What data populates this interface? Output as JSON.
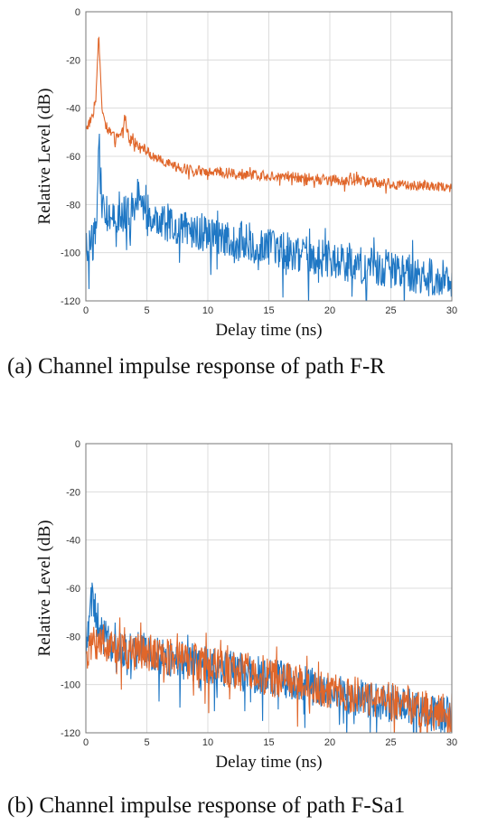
{
  "chart_data": [
    {
      "type": "line",
      "caption": "(a) Channel impulse response of path F-R",
      "xlabel": "Delay time (ns)",
      "ylabel": "Relative Level (dB)",
      "xlim": [
        0,
        30
      ],
      "ylim": [
        -120,
        0
      ],
      "xticks": [
        "0",
        "5",
        "10",
        "15",
        "20",
        "25",
        "30"
      ],
      "yticks": [
        "-120",
        "-100",
        "-80",
        "-60",
        "-40",
        "-20",
        "0"
      ],
      "grid": true,
      "series": [
        {
          "color": "#E0662A",
          "x": [
            0,
            0.3,
            0.6,
            0.8,
            0.95,
            1.05,
            1.15,
            1.3,
            1.6,
            2.0,
            2.5,
            3.0,
            3.2,
            3.4,
            3.6,
            3.8,
            4.2,
            4.6,
            5.0,
            5.5,
            6.0,
            7.0,
            8.0,
            9.0,
            10.0,
            12.0,
            14.0,
            16.0,
            18.0,
            20.0,
            22.0,
            24.0,
            26.0,
            28.0,
            30.0
          ],
          "values": [
            -48,
            -46,
            -42,
            -35,
            -22,
            -9,
            -20,
            -38,
            -47,
            -50,
            -53,
            -50,
            -42,
            -50,
            -54,
            -52,
            -56,
            -55,
            -58,
            -60,
            -61,
            -64,
            -65,
            -66,
            -66,
            -67,
            -68,
            -68,
            -69,
            -70,
            -70,
            -71,
            -72,
            -72,
            -73
          ]
        },
        {
          "color": "#1F77C4",
          "x": [
            0,
            0.3,
            0.6,
            0.9,
            1.0,
            1.1,
            1.2,
            1.4,
            2.0,
            3.0,
            4.0,
            4.5,
            5.0,
            6.0,
            7.0,
            8.0,
            10.0,
            12.0,
            14.0,
            16.0,
            18.0,
            20.0,
            22.0,
            24.0,
            26.0,
            28.0,
            30.0
          ],
          "values": [
            -105,
            -98,
            -95,
            -90,
            -70,
            -53,
            -70,
            -82,
            -86,
            -84,
            -82,
            -72,
            -85,
            -87,
            -88,
            -89,
            -92,
            -95,
            -97,
            -99,
            -101,
            -103,
            -105,
            -106,
            -108,
            -110,
            -112
          ]
        }
      ]
    },
    {
      "type": "line",
      "caption": "(b) Channel impulse response of path F-Sa1",
      "xlabel": "Delay time (ns)",
      "ylabel": "Relative Level (dB)",
      "xlim": [
        0,
        30
      ],
      "ylim": [
        -120,
        0
      ],
      "xticks": [
        "0",
        "5",
        "10",
        "15",
        "20",
        "25",
        "30"
      ],
      "yticks": [
        "-120",
        "-100",
        "-80",
        "-60",
        "-40",
        "-20",
        "0"
      ],
      "grid": true,
      "series": [
        {
          "color": "#1F77C4",
          "x": [
            0,
            0.3,
            0.5,
            0.8,
            1.2,
            2.0,
            3.0,
            4.0,
            5.0,
            6.0,
            8.0,
            10.0,
            12.0,
            14.0,
            16.0,
            18.0,
            20.0,
            22.0,
            24.0,
            26.0,
            28.0,
            30.0
          ],
          "values": [
            -80,
            -72,
            -64,
            -70,
            -78,
            -84,
            -87,
            -86,
            -86,
            -88,
            -90,
            -92,
            -94,
            -96,
            -98,
            -100,
            -103,
            -105,
            -107,
            -109,
            -111,
            -113
          ]
        },
        {
          "color": "#E0662A",
          "x": [
            0,
            0.5,
            1.0,
            2.0,
            3.0,
            4.0,
            5.0,
            6.0,
            8.0,
            10.0,
            12.0,
            14.0,
            16.0,
            18.0,
            20.0,
            22.0,
            24.0,
            26.0,
            28.0,
            30.0
          ],
          "values": [
            -90,
            -84,
            -82,
            -84,
            -85,
            -86,
            -87,
            -88,
            -90,
            -92,
            -94,
            -96,
            -98,
            -100,
            -102,
            -104,
            -106,
            -108,
            -110,
            -112
          ]
        }
      ]
    }
  ]
}
